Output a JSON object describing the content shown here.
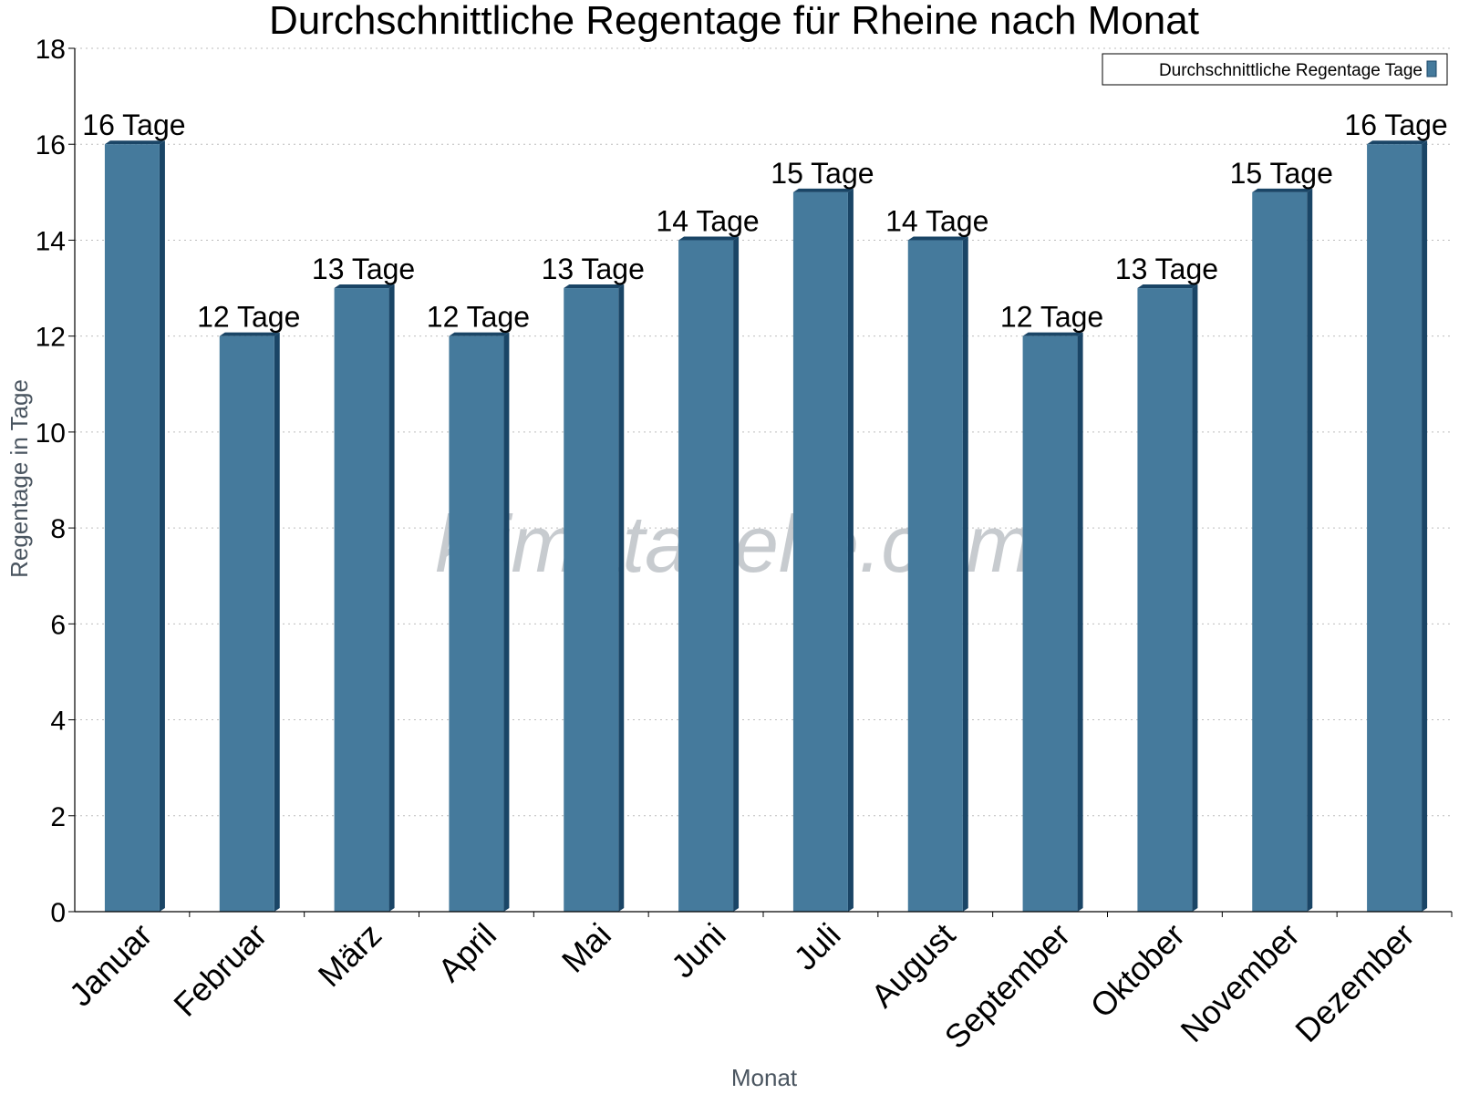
{
  "chart_data": {
    "type": "bar",
    "title": "Durchschnittliche Regentage für Rheine nach Monat",
    "xlabel": "Monat",
    "ylabel": "Regentage in Tage",
    "ylim": [
      0,
      18
    ],
    "yticks": [
      "0",
      "2",
      "4",
      "6",
      "8",
      "10",
      "12",
      "14",
      "16",
      "18"
    ],
    "grid": true,
    "legend_position": "top-right",
    "categories": [
      "Januar",
      "Februar",
      "März",
      "April",
      "Mai",
      "Juni",
      "Juli",
      "August",
      "September",
      "Oktober",
      "November",
      "Dezember"
    ],
    "series": [
      {
        "name": "Durchschnittliche Regentage Tage",
        "values": [
          16,
          12,
          13,
          12,
          13,
          14,
          15,
          14,
          12,
          13,
          15,
          16
        ],
        "labels": [
          "16 Tage",
          "12 Tage",
          "13 Tage",
          "12 Tage",
          "13 Tage",
          "14 Tage",
          "15 Tage",
          "14 Tage",
          "12 Tage",
          "13 Tage",
          "15 Tage",
          "16 Tage"
        ],
        "color": "#457a9c",
        "side_color": "#1a4566"
      }
    ]
  },
  "watermark": "klimatabelle.com"
}
